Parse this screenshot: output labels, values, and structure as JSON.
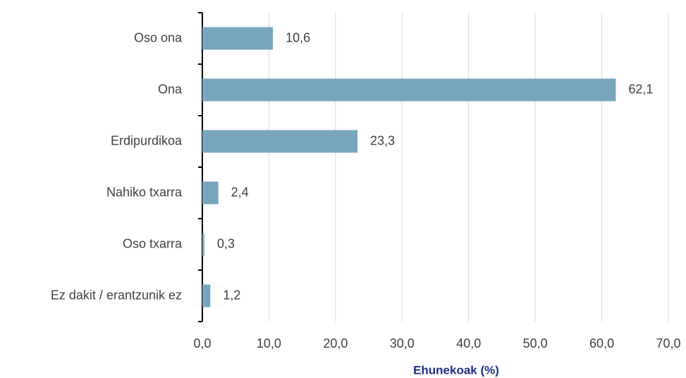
{
  "chart_data": {
    "type": "bar",
    "orientation": "horizontal",
    "categories": [
      "Oso ona",
      "Ona",
      "Erdipurdikoa",
      "Nahiko txarra",
      "Oso txarra",
      "Ez dakit / erantzunik ez"
    ],
    "values": [
      10.6,
      62.1,
      23.3,
      2.4,
      0.3,
      1.2
    ],
    "value_labels": [
      "10,6",
      "62,1",
      "23,3",
      "2,4",
      "0,3",
      "1,2"
    ],
    "color": "#77a6bc",
    "xlabel": "Ehunekoak (%)",
    "xlim": [
      0,
      70
    ],
    "xticks": [
      {
        "value": 0,
        "label": "0,0"
      },
      {
        "value": 10,
        "label": "10,0"
      },
      {
        "value": 20,
        "label": "20,0"
      },
      {
        "value": 30,
        "label": "30,0"
      },
      {
        "value": 40,
        "label": "40,0"
      },
      {
        "value": 50,
        "label": "50,0"
      },
      {
        "value": 60,
        "label": "60,0"
      },
      {
        "value": 70,
        "label": "70,0"
      }
    ],
    "grid": true
  }
}
